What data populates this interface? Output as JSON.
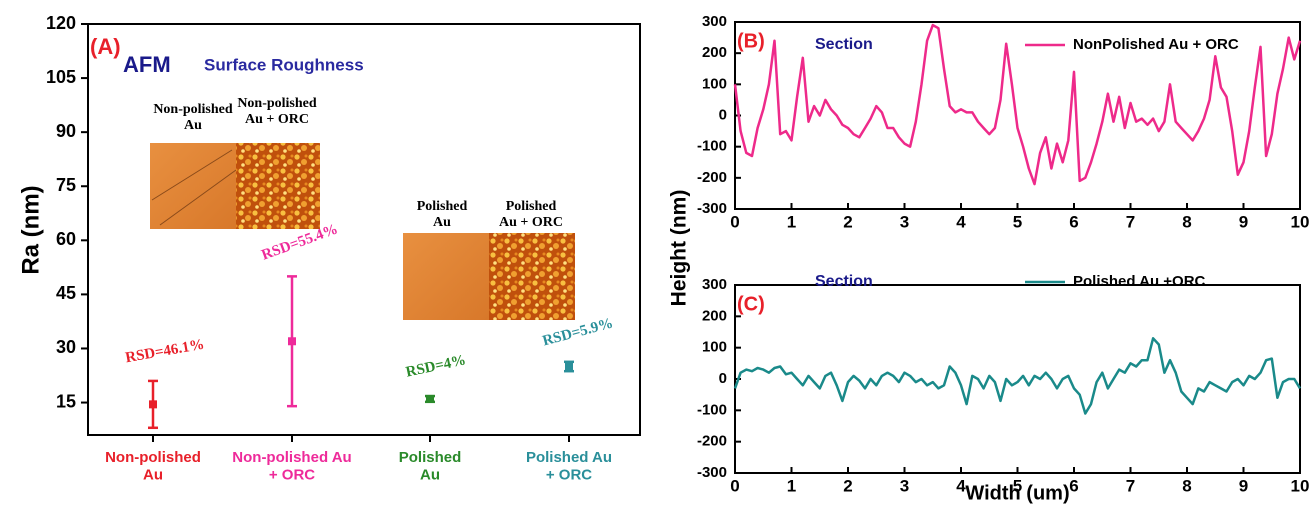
{
  "chart_data": [
    {
      "type": "errorbar",
      "panel_label": "(A)",
      "title": "AFM",
      "subtitle": "Surface Roughness",
      "ylabel": "Ra (nm)",
      "categories": [
        "Non-polished\nAu",
        "Non-polished Au\n+ ORC",
        "Polished\nAu",
        "Polished Au\n+ ORC"
      ],
      "values": [
        14.5,
        32,
        16,
        25
      ],
      "errors": [
        6.5,
        18,
        0.8,
        1.3
      ],
      "colors": [
        "#e8202a",
        "#ee2a9a",
        "#2a8a2a",
        "#2a8f9a"
      ],
      "annotations": [
        "RSD=46.1%",
        "RSD=55.4%",
        "RSD=4%",
        "RSD=5.9%"
      ],
      "inset_labels": [
        "Non-polished\nAu",
        "Non-polished\nAu + ORC",
        "Polished\nAu",
        "Polished\nAu + ORC"
      ],
      "ylim": [
        6,
        120
      ],
      "yticks": [
        15,
        30,
        45,
        60,
        75,
        90,
        105,
        120
      ]
    },
    {
      "type": "line",
      "panel_label": "(B)",
      "annotation": "Section",
      "ylabel": "Height (nm)",
      "x": [
        0,
        0.1,
        0.2,
        0.3,
        0.4,
        0.5,
        0.6,
        0.7,
        0.8,
        0.9,
        1,
        1.1,
        1.2,
        1.3,
        1.4,
        1.5,
        1.6,
        1.7,
        1.8,
        1.9,
        2,
        2.1,
        2.2,
        2.3,
        2.4,
        2.5,
        2.6,
        2.7,
        2.8,
        2.9,
        3,
        3.1,
        3.2,
        3.3,
        3.4,
        3.5,
        3.6,
        3.7,
        3.8,
        3.9,
        4,
        4.1,
        4.2,
        4.3,
        4.4,
        4.5,
        4.6,
        4.7,
        4.8,
        4.9,
        5,
        5.1,
        5.2,
        5.3,
        5.4,
        5.5,
        5.6,
        5.7,
        5.8,
        5.9,
        6,
        6.1,
        6.2,
        6.3,
        6.4,
        6.5,
        6.6,
        6.7,
        6.8,
        6.9,
        7,
        7.1,
        7.2,
        7.3,
        7.4,
        7.5,
        7.6,
        7.7,
        7.8,
        7.9,
        8,
        8.1,
        8.2,
        8.3,
        8.4,
        8.5,
        8.6,
        8.7,
        8.8,
        8.9,
        9,
        9.1,
        9.2,
        9.3,
        9.4,
        9.5,
        9.6,
        9.7,
        9.8,
        9.9,
        10
      ],
      "series": [
        {
          "name": "NonPolished Au + ORC",
          "color": "#ee2a8a",
          "values": [
            100,
            -50,
            -120,
            -130,
            -40,
            20,
            100,
            240,
            -60,
            -50,
            -80,
            60,
            185,
            -20,
            30,
            0,
            50,
            20,
            0,
            -30,
            -40,
            -60,
            -70,
            -40,
            -10,
            30,
            10,
            -40,
            -40,
            -70,
            -90,
            -100,
            -20,
            100,
            240,
            290,
            280,
            150,
            30,
            10,
            20,
            10,
            10,
            -20,
            -40,
            -60,
            -40,
            50,
            230,
            100,
            -40,
            -100,
            -170,
            -220,
            -120,
            -70,
            -170,
            -90,
            -150,
            -80,
            140,
            -210,
            -200,
            -150,
            -90,
            -20,
            70,
            -20,
            60,
            -40,
            40,
            -20,
            -10,
            -30,
            -10,
            -50,
            -20,
            100,
            -20,
            -40,
            -60,
            -80,
            -50,
            -10,
            50,
            190,
            90,
            60,
            -50,
            -190,
            -150,
            -50,
            90,
            220,
            -130,
            -60,
            70,
            150,
            250,
            180,
            240
          ]
        }
      ],
      "xlim": [
        0,
        10
      ],
      "xticks": [
        0,
        1,
        2,
        3,
        4,
        5,
        6,
        7,
        8,
        9,
        10
      ],
      "ylim": [
        -300,
        300
      ],
      "yticks": [
        -300,
        -200,
        -100,
        0,
        100,
        200,
        300
      ]
    },
    {
      "type": "line",
      "panel_label": "(C)",
      "annotation": "Section",
      "xlabel": "Width (um)",
      "x": [
        0,
        0.1,
        0.2,
        0.3,
        0.4,
        0.5,
        0.6,
        0.7,
        0.8,
        0.9,
        1,
        1.1,
        1.2,
        1.3,
        1.4,
        1.5,
        1.6,
        1.7,
        1.8,
        1.9,
        2,
        2.1,
        2.2,
        2.3,
        2.4,
        2.5,
        2.6,
        2.7,
        2.8,
        2.9,
        3,
        3.1,
        3.2,
        3.3,
        3.4,
        3.5,
        3.6,
        3.7,
        3.8,
        3.9,
        4,
        4.1,
        4.2,
        4.3,
        4.4,
        4.5,
        4.6,
        4.7,
        4.8,
        4.9,
        5,
        5.1,
        5.2,
        5.3,
        5.4,
        5.5,
        5.6,
        5.7,
        5.8,
        5.9,
        6,
        6.1,
        6.2,
        6.3,
        6.4,
        6.5,
        6.6,
        6.7,
        6.8,
        6.9,
        7,
        7.1,
        7.2,
        7.3,
        7.4,
        7.5,
        7.6,
        7.7,
        7.8,
        7.9,
        8,
        8.1,
        8.2,
        8.3,
        8.4,
        8.5,
        8.6,
        8.7,
        8.8,
        8.9,
        9,
        9.1,
        9.2,
        9.3,
        9.4,
        9.5,
        9.6,
        9.7,
        9.8,
        9.9,
        10
      ],
      "series": [
        {
          "name": "Polished Au +ORC",
          "color": "#1a8a8a",
          "values": [
            -30,
            20,
            30,
            25,
            35,
            30,
            20,
            35,
            40,
            15,
            20,
            0,
            -20,
            10,
            -10,
            -30,
            10,
            20,
            -20,
            -70,
            -10,
            10,
            -5,
            -30,
            0,
            -20,
            10,
            20,
            10,
            -10,
            20,
            10,
            -10,
            0,
            -20,
            -10,
            -30,
            -20,
            40,
            20,
            -20,
            -80,
            10,
            0,
            -30,
            10,
            -10,
            -70,
            0,
            -20,
            -10,
            10,
            -20,
            10,
            0,
            20,
            0,
            -30,
            0,
            10,
            -30,
            -50,
            -110,
            -80,
            -10,
            20,
            -30,
            0,
            30,
            20,
            50,
            40,
            60,
            60,
            130,
            110,
            20,
            60,
            20,
            -40,
            -60,
            -80,
            -30,
            -40,
            -10,
            -20,
            -30,
            -40,
            -10,
            0,
            -20,
            10,
            0,
            20,
            60,
            65,
            -60,
            -10,
            0,
            0,
            -30
          ]
        }
      ],
      "xlim": [
        0,
        10
      ],
      "xticks": [
        0,
        1,
        2,
        3,
        4,
        5,
        6,
        7,
        8,
        9,
        10
      ],
      "ylim": [
        -300,
        300
      ],
      "yticks": [
        -300,
        -200,
        -100,
        0,
        100,
        200,
        300
      ]
    }
  ]
}
